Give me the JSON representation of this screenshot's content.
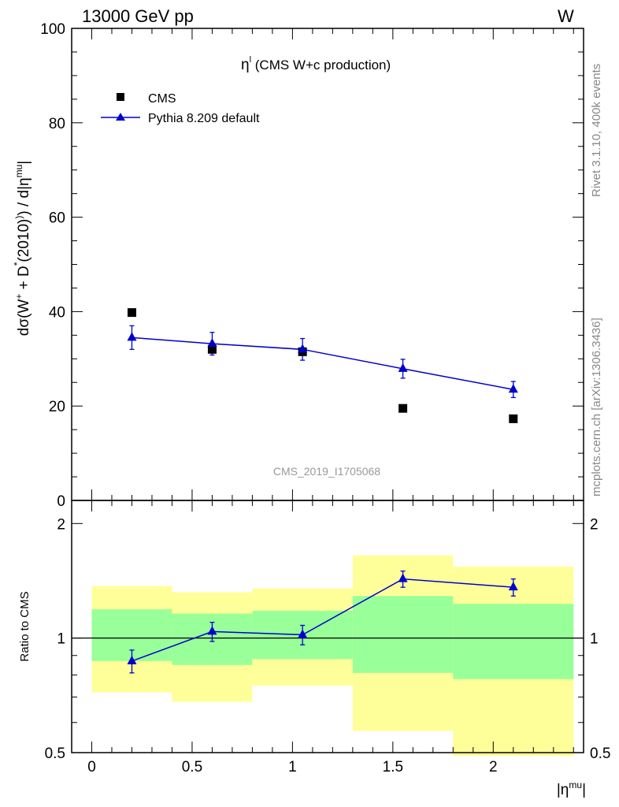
{
  "header": {
    "energy_label": "13000 GeV pp",
    "process_label": "W"
  },
  "side_labels": {
    "rivet": "Rivet 3.1.10,  400k events",
    "mcplots": "mcplots.cern.ch [arXiv:1306.3436]"
  },
  "watermark": "CMS_2019_I1705068",
  "plot_title": {
    "main": "η",
    "sup": "l",
    "rest": " (CMS W+c production)"
  },
  "legend": [
    {
      "label": "CMS",
      "marker": "square",
      "color": "#000000"
    },
    {
      "label": "Pythia 8.209 default",
      "marker": "triangle",
      "color": "#0000cc"
    }
  ],
  "y_axis_label": "dσ(W⁺ + D*(2010)⁾) / d|η^mu|",
  "ratio_axis_label": "Ratio to CMS",
  "x_axis_label": "|η^mu|",
  "colors": {
    "band_outer": "#ffff99",
    "band_inner": "#99ff99",
    "mc": "#0000cc",
    "data": "#000000"
  },
  "chart_data": [
    {
      "type": "scatter",
      "panel": "main",
      "xlim": [
        -0.1,
        2.45
      ],
      "ylim": [
        0,
        100
      ],
      "yticks": [
        "20",
        "40",
        "60",
        "80",
        "100"
      ],
      "ytick_values": [
        20,
        40,
        60,
        80,
        100
      ],
      "bins": [
        [
          0.0,
          0.4
        ],
        [
          0.4,
          0.8
        ],
        [
          0.8,
          1.3
        ],
        [
          1.3,
          1.8
        ],
        [
          1.8,
          2.4
        ]
      ],
      "series": [
        {
          "name": "CMS",
          "x": [
            0.2,
            0.6,
            1.05,
            1.55,
            2.1
          ],
          "y": [
            39.8,
            32.0,
            31.5,
            19.5,
            17.3
          ]
        },
        {
          "name": "Pythia 8.209 default",
          "x": [
            0.2,
            0.6,
            1.05,
            1.55,
            2.1
          ],
          "y": [
            34.5,
            33.2,
            32.0,
            27.9,
            23.5
          ],
          "yerr": [
            2.5,
            2.4,
            2.3,
            2.0,
            1.7
          ]
        }
      ]
    },
    {
      "type": "scatter",
      "panel": "ratio",
      "xlim": [
        -0.1,
        2.45
      ],
      "ylim": [
        0.5,
        2.3
      ],
      "log_y": true,
      "yticks": [
        "0.5",
        "1",
        "2"
      ],
      "ytick_values": [
        0.5,
        1,
        2
      ],
      "xticks": [
        "0",
        "0.5",
        "1",
        "1.5",
        "2"
      ],
      "xtick_values": [
        0,
        0.5,
        1,
        1.5,
        2
      ],
      "bins": [
        [
          0.0,
          0.4
        ],
        [
          0.4,
          0.8
        ],
        [
          0.8,
          1.3
        ],
        [
          1.3,
          1.8
        ],
        [
          1.8,
          2.4
        ]
      ],
      "band_outer": [
        [
          0.72,
          1.37
        ],
        [
          0.68,
          1.32
        ],
        [
          0.75,
          1.35
        ],
        [
          0.57,
          1.65
        ],
        [
          0.49,
          1.54
        ]
      ],
      "band_inner": [
        [
          0.87,
          1.19
        ],
        [
          0.85,
          1.16
        ],
        [
          0.88,
          1.18
        ],
        [
          0.81,
          1.29
        ],
        [
          0.78,
          1.23
        ]
      ],
      "series": [
        {
          "name": "Pythia 8.209 default",
          "x": [
            0.2,
            0.6,
            1.05,
            1.55,
            2.1
          ],
          "y": [
            0.87,
            1.04,
            1.02,
            1.43,
            1.36
          ],
          "yerr": [
            0.06,
            0.06,
            0.06,
            0.07,
            0.07
          ]
        }
      ]
    }
  ]
}
